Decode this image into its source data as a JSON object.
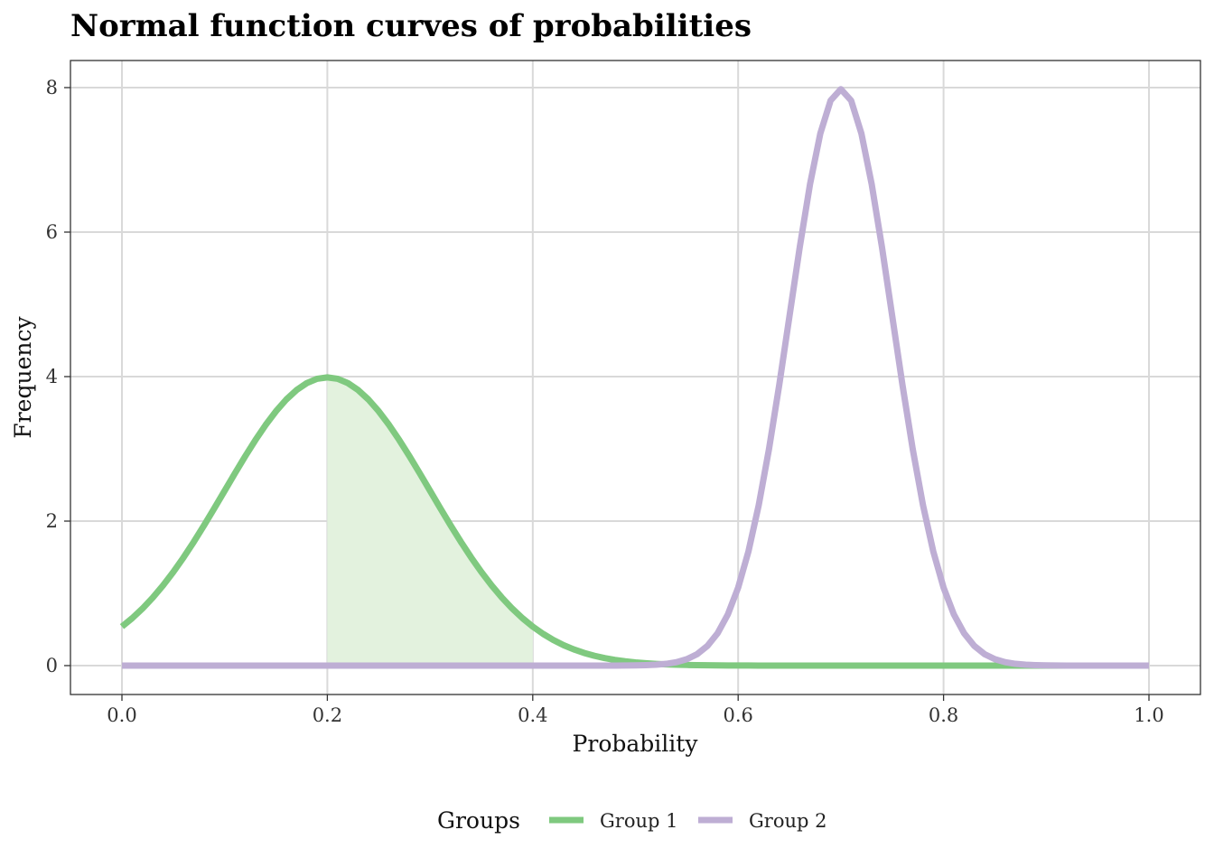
{
  "chart_data": {
    "type": "line",
    "title": "Normal function curves of probabilities",
    "xlabel": "Probability",
    "ylabel": "Frequency",
    "xlim": [
      0,
      1
    ],
    "ylim": [
      0,
      8
    ],
    "x_ticks": [
      "0.0",
      "0.2",
      "0.4",
      "0.6",
      "0.8",
      "1.0"
    ],
    "y_ticks": [
      "0",
      "2",
      "4",
      "6",
      "8"
    ],
    "grid": true,
    "legend": {
      "title": "Groups",
      "placement": "bottom",
      "entries": [
        "Group 1",
        "Group 2"
      ]
    },
    "series": [
      {
        "name": "Group 1",
        "color": "#7fc97f",
        "distribution": "normal",
        "mean": 0.2,
        "sd": 0.1,
        "peak_y": 3.99
      },
      {
        "name": "Group 2",
        "color": "#beaed4",
        "distribution": "normal",
        "mean": 0.7,
        "sd": 0.05,
        "peak_y": 7.98
      }
    ],
    "shaded_area": {
      "series": "Group 1",
      "x_from": 0.2,
      "x_to": 0.4,
      "color": "#e3f2de"
    }
  }
}
